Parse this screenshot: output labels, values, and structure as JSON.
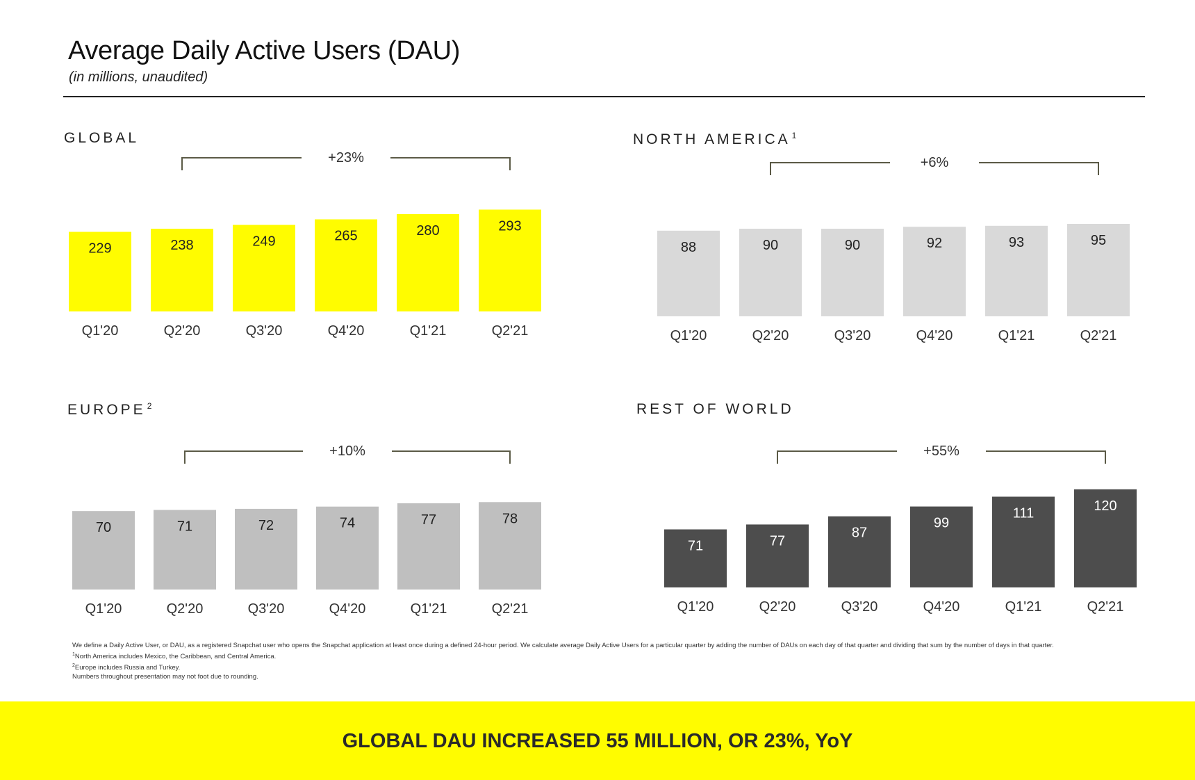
{
  "header": {
    "title": "Average Daily Active Users (DAU)",
    "subtitle": "(in millions, unaudited)"
  },
  "colors": {
    "global": "#fffc00",
    "north_america": "#d9d9d9",
    "europe": "#bfbfbf",
    "rest_of_world": "#4d4d4d",
    "bracket": "#5b5a46",
    "banner": "#fffc00"
  },
  "chart_data": [
    {
      "type": "bar",
      "title": "GLOBAL",
      "title_sup": "",
      "categories": [
        "Q1'20",
        "Q2'20",
        "Q3'20",
        "Q4'20",
        "Q1'21",
        "Q2'21"
      ],
      "values": [
        229,
        238,
        249,
        265,
        280,
        293
      ],
      "annotation": "+23%",
      "bar_color": "#fffc00",
      "label_color": "#222222"
    },
    {
      "type": "bar",
      "title": "NORTH AMERICA",
      "title_sup": "1",
      "categories": [
        "Q1'20",
        "Q2'20",
        "Q3'20",
        "Q4'20",
        "Q1'21",
        "Q2'21"
      ],
      "values": [
        88,
        90,
        90,
        92,
        93,
        95
      ],
      "annotation": "+6%",
      "bar_color": "#d9d9d9",
      "label_color": "#222222"
    },
    {
      "type": "bar",
      "title": "EUROPE",
      "title_sup": "2",
      "categories": [
        "Q1'20",
        "Q2'20",
        "Q3'20",
        "Q4'20",
        "Q1'21",
        "Q2'21"
      ],
      "values": [
        70,
        71,
        72,
        74,
        77,
        78
      ],
      "annotation": "+10%",
      "bar_color": "#bfbfbf",
      "label_color": "#222222"
    },
    {
      "type": "bar",
      "title": "REST OF WORLD",
      "title_sup": "",
      "categories": [
        "Q1'20",
        "Q2'20",
        "Q3'20",
        "Q4'20",
        "Q1'21",
        "Q2'21"
      ],
      "values": [
        71,
        77,
        87,
        99,
        111,
        120
      ],
      "annotation": "+55%",
      "bar_color": "#4d4d4d",
      "label_color": "#ffffff"
    }
  ],
  "footnotes": {
    "definition": "We define a Daily Active User, or DAU, as a registered Snapchat user who opens the Snapchat application at least once during a defined 24-hour period. We calculate average Daily Active Users for a particular quarter by adding the number of DAUs on each day of that quarter and dividing that sum by the number of days in that quarter.",
    "note1_marker": "1",
    "note1": "North America includes Mexico, the Caribbean, and Central America.",
    "note2_marker": "2",
    "note2": "Europe includes Russia and Turkey.",
    "note3": "Numbers throughout presentation may not foot due to rounding."
  },
  "banner": {
    "text": "GLOBAL DAU INCREASED 55 MILLION, OR 23%, YoY"
  }
}
